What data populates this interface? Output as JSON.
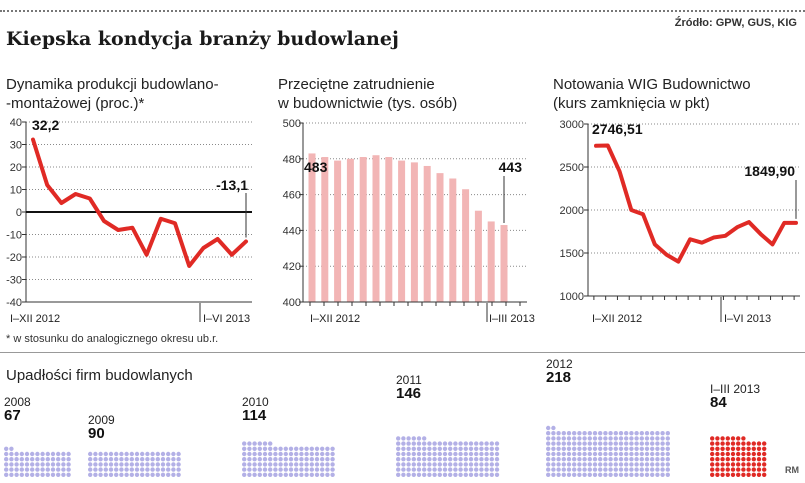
{
  "header": {
    "source": "Źródło: GPW, GUS, KIG",
    "title": "Kiepska kondycja branży budowlanej"
  },
  "colors": {
    "red": "#e02a25",
    "pink": "#f2b5b5",
    "purple": "#b3b0e6",
    "bankrupt_red": "#e02a25"
  },
  "footnote": "* w stosunku do analogicznego okresu ub.r.",
  "chart_data": [
    {
      "type": "line",
      "title_line1": "Dynamika produkcji budowlano-",
      "title_line2": "-montażowej (proc.)*",
      "ylim": [
        -40,
        40
      ],
      "yticks": [
        "40",
        "30",
        "20",
        "10",
        "0",
        "-10",
        "-20",
        "-30",
        "-40"
      ],
      "x_labels": [
        "I–XII 2012",
        "I–VI 2013"
      ],
      "values": [
        32.2,
        12,
        4,
        8,
        6,
        -4,
        -8,
        -7,
        -19,
        -3,
        -5,
        -24,
        -16,
        -12,
        -19,
        -13.1
      ],
      "first_label": "32,2",
      "last_label": "-13,1"
    },
    {
      "type": "bar",
      "title_line1": "Przeciętne zatrudnienie",
      "title_line2": "w budownictwie (tys. osób)",
      "ylim": [
        400,
        500
      ],
      "yticks": [
        "500",
        "480",
        "460",
        "440",
        "420",
        "400"
      ],
      "x_labels": [
        "I–XII 2012",
        "I–III 2013"
      ],
      "values": [
        483,
        481,
        479,
        480,
        481,
        482,
        481,
        479,
        478,
        476,
        472,
        469,
        463,
        451,
        445,
        443
      ],
      "first_label": "483",
      "last_label": "443"
    },
    {
      "type": "line",
      "title_line1": "Notowania WIG Budownictwo",
      "title_line2": "(kurs zamknięcia w pkt)",
      "ylim": [
        1000,
        3000
      ],
      "yticks": [
        "3000",
        "2500",
        "2000",
        "1500",
        "1000"
      ],
      "x_labels": [
        "I–XII 2012",
        "I–VI 2013"
      ],
      "values": [
        2746.51,
        2750,
        2450,
        2000,
        1950,
        1600,
        1480,
        1400,
        1660,
        1620,
        1680,
        1700,
        1800,
        1860,
        1720,
        1600,
        1850,
        1849.9
      ],
      "first_label": "2746,51",
      "last_label": "1849,90"
    },
    {
      "type": "bar",
      "title": "Upadłości firm budowlanych",
      "groups": [
        {
          "year": "2008",
          "count": "67",
          "value": 67
        },
        {
          "year": "2009",
          "count": "90",
          "value": 90
        },
        {
          "year": "2010",
          "count": "114",
          "value": 114
        },
        {
          "year": "2011",
          "count": "146",
          "value": 146
        },
        {
          "year": "2012",
          "count": "218",
          "value": 218
        },
        {
          "year": "I–III 2013",
          "count": "84",
          "value": 84
        }
      ]
    }
  ],
  "credit": "RM"
}
